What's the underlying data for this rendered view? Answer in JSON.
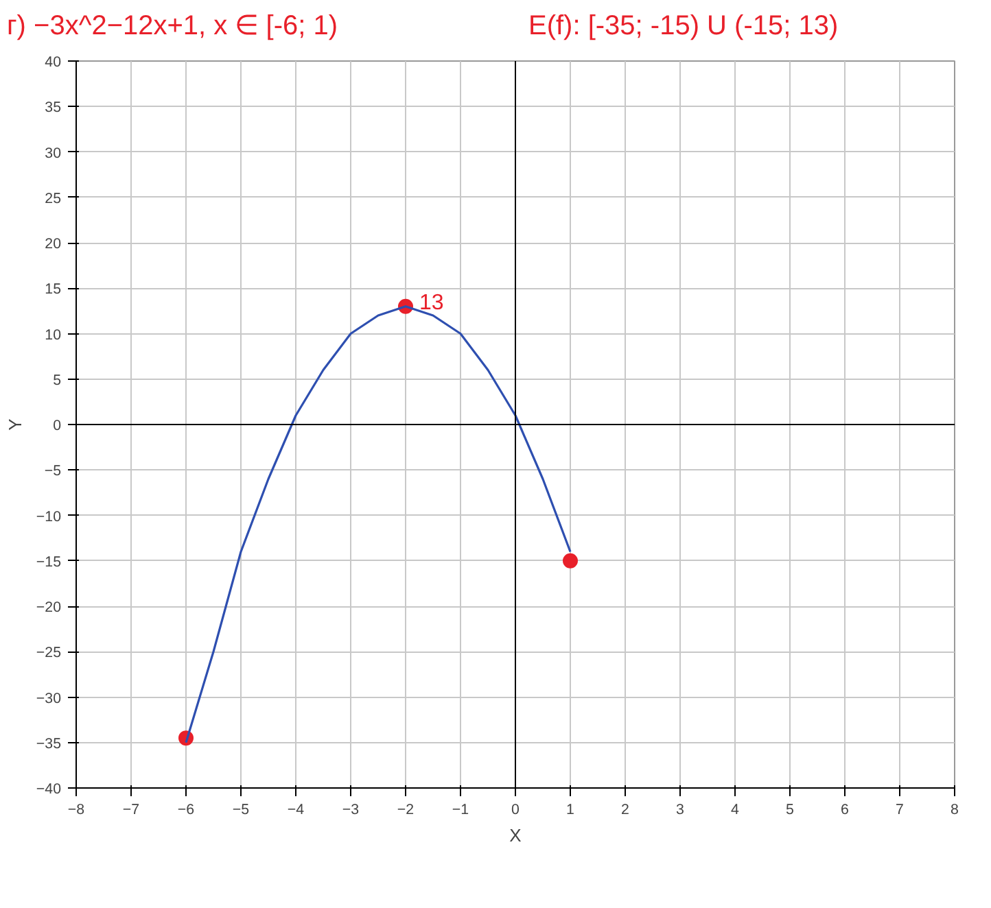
{
  "chart_data": {
    "type": "line",
    "title": "г) −3x^2−12x+1, x ∈ [-6; 1)",
    "subtitle": "E(f): [-35; -15) U (-15; 13)",
    "xlabel": "X",
    "ylabel": "Y",
    "x": [
      -6,
      -5.5,
      -5,
      -4.5,
      -4,
      -3.5,
      -3,
      -2.5,
      -2,
      -1.5,
      -1,
      -0.5,
      0,
      0.5,
      1
    ],
    "series": [
      {
        "color": "#2e4fb0",
        "values": [
          -35,
          -25,
          -14,
          -6,
          1,
          6,
          10,
          12,
          13,
          12,
          10,
          6,
          1,
          -6,
          -14
        ]
      },
      {
        "type": "scatter",
        "marker": "circle",
        "color": "#e8202a",
        "x": [
          -6,
          -2,
          1
        ],
        "values": [
          -34.5,
          13,
          -15
        ]
      }
    ],
    "annotations": [
      {
        "text": "13",
        "x": -2,
        "y": 13
      }
    ],
    "xlim": [
      -8,
      8
    ],
    "xticks": [
      -8,
      -7,
      -6,
      -5,
      -4,
      -3,
      -2,
      -1,
      0,
      1,
      2,
      3,
      4,
      5,
      6,
      7,
      8
    ],
    "ylim": [
      -40,
      40
    ],
    "yticks": [
      -40,
      -35,
      -30,
      -25,
      -20,
      -15,
      -10,
      -5,
      0,
      5,
      10,
      15,
      20,
      25,
      30,
      35,
      40
    ],
    "grid": true,
    "line_style": "solid"
  }
}
